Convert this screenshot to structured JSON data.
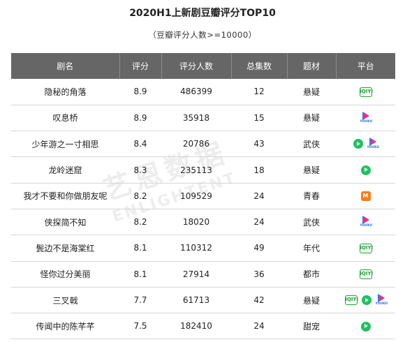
{
  "title": "2020H1上新剧豆瓣评分TOP10",
  "subtitle": "（豆瓣评分人数>=10000）",
  "headers": [
    "剧名",
    "评分",
    "评分人数",
    "总集数",
    "题材",
    "平台"
  ],
  "rows": [
    {
      "name": "隐秘的角落",
      "score": "8.9",
      "votes": "486399",
      "episodes": "12",
      "genre": "悬疑",
      "platforms": [
        "iqiyi-icon"
      ]
    },
    {
      "name": "叹息桥",
      "score": "8.9",
      "votes": "35918",
      "episodes": "15",
      "genre": "悬疑",
      "platforms": [
        "youku-icon"
      ]
    },
    {
      "name": "少年游之一寸相思",
      "score": "8.4",
      "votes": "20786",
      "episodes": "43",
      "genre": "武侠",
      "platforms": [
        "tencent-video-icon",
        "youku-icon"
      ]
    },
    {
      "name": "龙岭迷窟",
      "score": "8.3",
      "votes": "235113",
      "episodes": "18",
      "genre": "悬疑",
      "platforms": [
        "tencent-video-icon"
      ]
    },
    {
      "name": "我才不要和你做朋友呢",
      "score": "8.2",
      "votes": "109529",
      "episodes": "24",
      "genre": "青春",
      "platforms": [
        "mango-tv-icon"
      ]
    },
    {
      "name": "侠探简不知",
      "score": "8.2",
      "votes": "18020",
      "episodes": "24",
      "genre": "武侠",
      "platforms": [
        "youku-icon"
      ]
    },
    {
      "name": "鬓边不是海棠红",
      "score": "8.1",
      "votes": "110312",
      "episodes": "49",
      "genre": "年代",
      "platforms": [
        "iqiyi-icon"
      ]
    },
    {
      "name": "怪你过分美丽",
      "score": "8.1",
      "votes": "27914",
      "episodes": "36",
      "genre": "都市",
      "platforms": [
        "iqiyi-icon"
      ]
    },
    {
      "name": "三叉戟",
      "score": "7.7",
      "votes": "61713",
      "episodes": "42",
      "genre": "悬疑",
      "platforms": [
        "iqiyi-icon",
        "tencent-video-icon",
        "youku-icon"
      ]
    },
    {
      "name": "传闻中的陈芊芊",
      "score": "7.5",
      "votes": "182410",
      "episodes": "24",
      "genre": "甜宠",
      "platforms": [
        "tencent-video-icon"
      ]
    }
  ],
  "icon_labels": {
    "iqiyi": "iQIYI",
    "youku": "YOUKU",
    "mango": "M"
  },
  "watermark": {
    "cn": "艺恩数据",
    "en": "ENLIGHTENT"
  },
  "colors": {
    "header_bg": "#666666",
    "iqiyi": "#22a33a",
    "tencent": "#1ec25f",
    "youku_blue": "#2b7bff",
    "youku_pink": "#ff2a6a",
    "mango": "#ff7a1a"
  }
}
